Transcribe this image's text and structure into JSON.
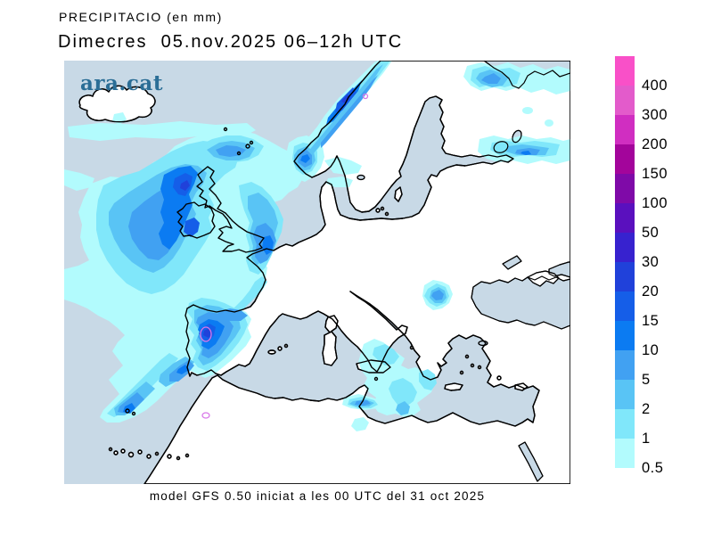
{
  "header": {
    "title": "PRECIPITACIO (en mm)",
    "subtitle": "Dimecres  05.nov.2025 06–12h UTC"
  },
  "watermark": {
    "text": "ara.cat",
    "color": "#2B6E96"
  },
  "footer": {
    "caption": "model GFS 0.50 iniciat a les 00 UTC del 31 oct 2025"
  },
  "colorbar": {
    "bands": [
      "#F950C8",
      "#E35BCB",
      "#D02EC1",
      "#A3059B",
      "#7F0AA8",
      "#5A10BE",
      "#3722CF",
      "#2041DA",
      "#155EE8",
      "#0B7BF2",
      "#41A1F2",
      "#59C4F5",
      "#80E7FA",
      "#B2FBFD"
    ],
    "labels": [
      "400",
      "300",
      "200",
      "150",
      "100",
      "50",
      "30",
      "20",
      "15",
      "10",
      "5",
      "2",
      "1",
      "0.5"
    ]
  },
  "palette": {
    "sea": "#C8D9E6",
    "land": "#FFFFFF",
    "coast": "#000000",
    "p05": "#B2FBFD",
    "p1": "#80E7FA",
    "p2": "#59C4F5",
    "p5": "#41A1F2",
    "p10": "#0B7BF2",
    "p15": "#155EE8",
    "p20": "#2041DA",
    "contour_ring": "#D878E8"
  },
  "map": {
    "model_note": "GFS 0.50",
    "region": "Europe / North Atlantic"
  }
}
